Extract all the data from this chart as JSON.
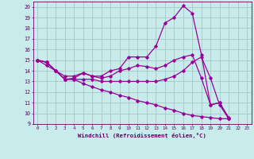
{
  "xlabel": "Windchill (Refroidissement éolien,°C)",
  "background_color": "#c8ecec",
  "grid_color": "#a8c8c8",
  "line_color": "#990099",
  "xlim": [
    -0.5,
    23.5
  ],
  "ylim": [
    9,
    20.5
  ],
  "yticks": [
    9,
    10,
    11,
    12,
    13,
    14,
    15,
    16,
    17,
    18,
    19,
    20
  ],
  "xticks": [
    0,
    1,
    2,
    3,
    4,
    5,
    6,
    7,
    8,
    9,
    10,
    11,
    12,
    13,
    14,
    15,
    16,
    17,
    18,
    19,
    20,
    21,
    22,
    23
  ],
  "line1": [
    15.0,
    14.8,
    14.0,
    13.5,
    13.5,
    13.8,
    13.5,
    13.3,
    13.5,
    14.0,
    14.2,
    14.5,
    14.4,
    14.2,
    14.5,
    15.0,
    15.3,
    15.5,
    13.3,
    10.8,
    11.0,
    9.6
  ],
  "line2": [
    15.0,
    14.5,
    14.0,
    13.2,
    13.3,
    13.8,
    13.5,
    13.5,
    14.0,
    14.2,
    15.3,
    15.3,
    15.3,
    16.3,
    18.5,
    19.0,
    20.1,
    19.4,
    15.5,
    10.8,
    11.0,
    9.5
  ],
  "line3": [
    15.0,
    14.8,
    14.0,
    13.2,
    13.2,
    13.2,
    13.2,
    13.0,
    13.0,
    13.0,
    13.0,
    13.0,
    13.0,
    13.0,
    13.2,
    13.5,
    14.0,
    14.8,
    15.3,
    13.3,
    10.8,
    9.5
  ],
  "line4": [
    15.0,
    14.8,
    14.0,
    13.2,
    13.2,
    12.8,
    12.5,
    12.2,
    12.0,
    11.7,
    11.5,
    11.2,
    11.0,
    10.8,
    10.5,
    10.3,
    10.0,
    9.8,
    9.7,
    9.6,
    9.5,
    9.5
  ],
  "marker": "D",
  "markersize": 1.8,
  "linewidth": 0.9
}
